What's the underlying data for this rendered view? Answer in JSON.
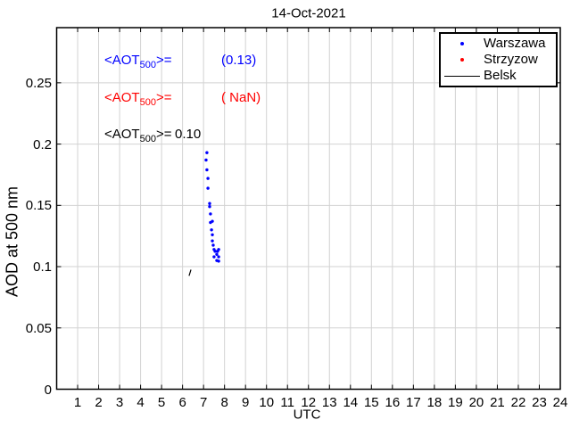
{
  "chart_data": {
    "type": "scatter",
    "title": "14-Oct-2021",
    "xlabel": "UTC",
    "ylabel": "AOD at 500 nm",
    "xlim": [
      0,
      24
    ],
    "ylim": [
      0,
      0.295
    ],
    "x_ticks": [
      1,
      2,
      3,
      4,
      5,
      6,
      7,
      8,
      9,
      10,
      11,
      12,
      13,
      14,
      15,
      16,
      17,
      18,
      19,
      20,
      21,
      22,
      23,
      24
    ],
    "y_ticks": [
      {
        "v": 0,
        "label": "0"
      },
      {
        "v": 0.05,
        "label": "0.05"
      },
      {
        "v": 0.1,
        "label": "0.1"
      },
      {
        "v": 0.15,
        "label": "0.15"
      },
      {
        "v": 0.2,
        "label": "0.2"
      },
      {
        "v": 0.25,
        "label": "0.25"
      }
    ],
    "grid": true,
    "grid_color": "#d2d2d2",
    "legend_position": "top-right",
    "series": [
      {
        "name": "Warszawa",
        "marker": "dot",
        "color": "#0000ff",
        "points": [
          [
            7.16,
            0.193
          ],
          [
            7.12,
            0.187
          ],
          [
            7.16,
            0.179
          ],
          [
            7.21,
            0.172
          ],
          [
            7.21,
            0.164
          ],
          [
            7.29,
            0.1515
          ],
          [
            7.29,
            0.149
          ],
          [
            7.33,
            0.143
          ],
          [
            7.33,
            0.136
          ],
          [
            7.42,
            0.137
          ],
          [
            7.38,
            0.13
          ],
          [
            7.42,
            0.126
          ],
          [
            7.42,
            0.121
          ],
          [
            7.46,
            0.1175
          ],
          [
            7.5,
            0.114
          ],
          [
            7.55,
            0.1125
          ],
          [
            7.5,
            0.108
          ],
          [
            7.63,
            0.11
          ],
          [
            7.67,
            0.1125
          ],
          [
            7.72,
            0.114
          ],
          [
            7.72,
            0.108
          ],
          [
            7.63,
            0.105
          ],
          [
            7.72,
            0.1045
          ]
        ]
      },
      {
        "name": "Strzyzow",
        "marker": "dot",
        "color": "#ff0000",
        "points": []
      },
      {
        "name": "Belsk",
        "marker": "line",
        "color": "#000000",
        "points": [
          [
            6.31,
            0.0925
          ],
          [
            6.4,
            0.0975
          ]
        ]
      }
    ]
  },
  "annotations": [
    {
      "prefix": "<AOT",
      "sub": "500",
      "suffix": ">=",
      "value": "(0.13)",
      "color": "#0000ff"
    },
    {
      "prefix": "<AOT",
      "sub": "500",
      "suffix": ">=",
      "value": "( NaN)",
      "color": "#ff0000"
    },
    {
      "prefix": "<AOT",
      "sub": "500",
      "suffix": ">= ",
      "value": "0.10",
      "color": "#000000"
    }
  ],
  "legend": {
    "items": [
      {
        "label": "Warszawa",
        "marker": "dot",
        "color": "#0000ff"
      },
      {
        "label": "Strzyzow",
        "marker": "dot",
        "color": "#ff0000"
      },
      {
        "label": "Belsk",
        "marker": "line",
        "color": "#000000"
      }
    ]
  }
}
